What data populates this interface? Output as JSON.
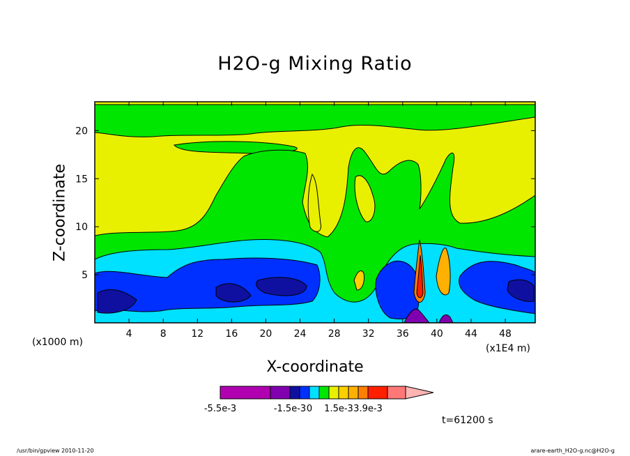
{
  "chart_data": {
    "type": "heatmap",
    "title": "H2O-g Mixing Ratio",
    "xlabel": "X-coordinate",
    "ylabel": "Z-coordinate",
    "x_unit_label": "(x1000 m)",
    "x_scale_label": "(x1E4 m)",
    "xlim": [
      0,
      51.5
    ],
    "ylim": [
      0,
      23
    ],
    "xticks": [
      4,
      8,
      12,
      16,
      20,
      24,
      28,
      32,
      36,
      40,
      44,
      48
    ],
    "yticks": [
      5,
      10,
      15,
      20
    ],
    "colorbar": {
      "colors": [
        "#b000b0",
        "#8000b0",
        "#1010a0",
        "#0030ff",
        "#00e0ff",
        "#00e600",
        "#e8f000",
        "#ffd000",
        "#ffb000",
        "#ff8000",
        "#ff2000",
        "#ff7878",
        "#ffb4b4"
      ],
      "labels": [
        "-5.5e-3",
        "-1.5e-3",
        "0",
        "1.5e-3",
        "3.9e-3"
      ]
    },
    "time_label": "t=61200 s",
    "footer_left": "/usr/bin/gpview  2010-11-20",
    "footer_right": "arare-earth_H2O-g.nc@H2O-g"
  }
}
